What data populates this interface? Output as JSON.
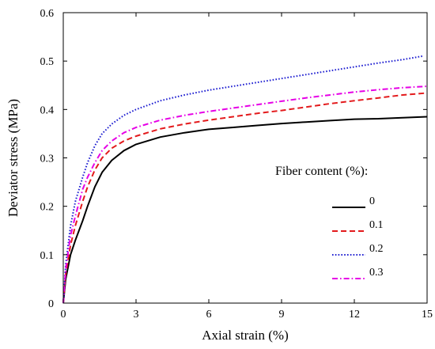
{
  "chart_data": {
    "type": "line",
    "title": "",
    "xlabel": "Axial strain (%)",
    "ylabel": "Deviator stress (MPa)",
    "xlim": [
      0,
      15
    ],
    "ylim": [
      0,
      0.6
    ],
    "xticks": [
      0,
      3,
      6,
      9,
      12,
      15
    ],
    "yticks": [
      0,
      0.1,
      0.2,
      0.3,
      0.4,
      0.5,
      0.6
    ],
    "xtick_labels": [
      "0",
      "3",
      "6",
      "9",
      "12",
      "15"
    ],
    "ytick_labels": [
      "0",
      "0.1",
      "0.2",
      "0.3",
      "0.4",
      "0.5",
      "0.6"
    ],
    "grid": false,
    "legend": {
      "title": "Fiber content (%):",
      "placement": "right"
    },
    "series": [
      {
        "name": "0",
        "color": "#000000",
        "style": "solid",
        "x": [
          0,
          0.1,
          0.3,
          0.5,
          0.8,
          1.0,
          1.3,
          1.6,
          2.0,
          2.5,
          3.0,
          4.0,
          5.0,
          6.0,
          7.0,
          8.0,
          9.0,
          10.0,
          11.0,
          12.0,
          13.0,
          14.0,
          15.0
        ],
        "y": [
          0,
          0.05,
          0.1,
          0.13,
          0.17,
          0.2,
          0.24,
          0.27,
          0.295,
          0.315,
          0.328,
          0.343,
          0.352,
          0.359,
          0.363,
          0.367,
          0.371,
          0.374,
          0.377,
          0.38,
          0.381,
          0.383,
          0.385
        ]
      },
      {
        "name": "0.1",
        "color": "#e31a1c",
        "style": "dashed",
        "x": [
          0,
          0.1,
          0.3,
          0.5,
          0.8,
          1.0,
          1.3,
          1.6,
          2.0,
          2.5,
          3.0,
          4.0,
          5.0,
          6.0,
          7.0,
          8.0,
          9.0,
          10.0,
          11.0,
          12.0,
          13.0,
          14.0,
          15.0
        ],
        "y": [
          0,
          0.06,
          0.12,
          0.16,
          0.21,
          0.24,
          0.275,
          0.3,
          0.32,
          0.335,
          0.345,
          0.36,
          0.37,
          0.378,
          0.385,
          0.392,
          0.398,
          0.405,
          0.412,
          0.418,
          0.424,
          0.43,
          0.434
        ]
      },
      {
        "name": "0.2",
        "color": "#1f1fd1",
        "style": "dotted",
        "x": [
          0,
          0.1,
          0.3,
          0.5,
          0.8,
          1.0,
          1.3,
          1.6,
          2.0,
          2.5,
          3.0,
          4.0,
          5.0,
          6.0,
          7.0,
          8.0,
          9.0,
          10.0,
          11.0,
          12.0,
          13.0,
          14.0,
          14.8
        ],
        "y": [
          0,
          0.08,
          0.16,
          0.21,
          0.26,
          0.29,
          0.325,
          0.35,
          0.37,
          0.388,
          0.4,
          0.418,
          0.43,
          0.44,
          0.448,
          0.456,
          0.464,
          0.472,
          0.48,
          0.488,
          0.496,
          0.503,
          0.51
        ]
      },
      {
        "name": "0.3",
        "color": "#e600e6",
        "style": "dashdot",
        "x": [
          0,
          0.1,
          0.3,
          0.5,
          0.8,
          1.0,
          1.3,
          1.6,
          2.0,
          2.5,
          3.0,
          4.0,
          5.0,
          6.0,
          7.0,
          8.0,
          9.0,
          10.0,
          11.0,
          12.0,
          13.0,
          14.0,
          15.0
        ],
        "y": [
          0,
          0.07,
          0.14,
          0.18,
          0.235,
          0.26,
          0.29,
          0.315,
          0.335,
          0.352,
          0.363,
          0.378,
          0.388,
          0.396,
          0.403,
          0.41,
          0.417,
          0.424,
          0.43,
          0.436,
          0.441,
          0.445,
          0.448
        ]
      }
    ]
  }
}
